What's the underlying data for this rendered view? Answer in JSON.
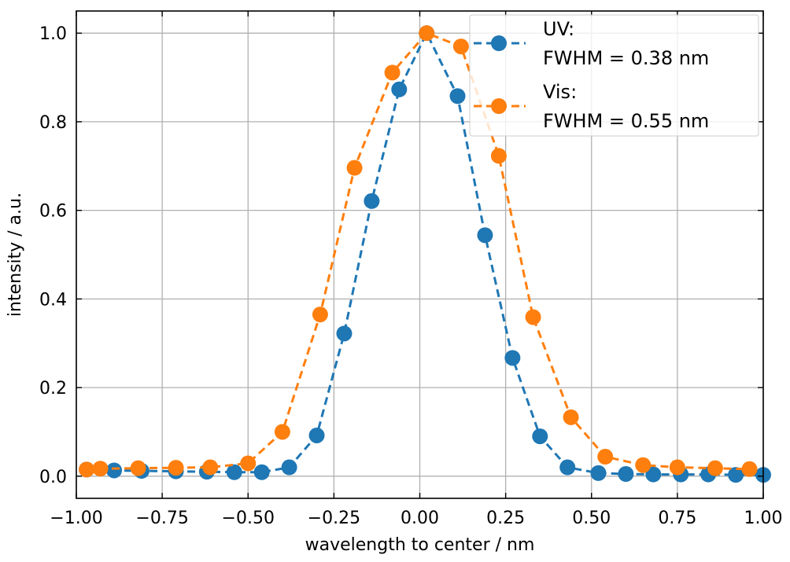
{
  "chart_data": {
    "type": "line",
    "xlabel": "wavelength to center / nm",
    "ylabel": "intensity / a.u.",
    "xlim": [
      -1.0,
      1.0
    ],
    "ylim": [
      -0.05,
      1.05
    ],
    "xticks": [
      "−1.00",
      "−0.75",
      "−0.50",
      "−0.25",
      "0.00",
      "0.25",
      "0.50",
      "0.75",
      "1.00"
    ],
    "yticks": [
      "0.0",
      "0.2",
      "0.4",
      "0.6",
      "0.8",
      "1.0"
    ],
    "grid": true,
    "legend_position": "top-right",
    "series": [
      {
        "label_line1": "UV:",
        "label_line2": "FWHM = 0.38 nm",
        "color": "#1f77b4",
        "x": [
          -0.97,
          -0.89,
          -0.81,
          -0.71,
          -0.62,
          -0.54,
          -0.46,
          -0.38,
          -0.3,
          -0.22,
          -0.14,
          -0.06,
          0.02,
          0.11,
          0.19,
          0.27,
          0.35,
          0.43,
          0.52,
          0.6,
          0.68,
          0.76,
          0.84,
          0.92,
          1.0
        ],
        "y": [
          0.015,
          0.013,
          0.012,
          0.011,
          0.01,
          0.009,
          0.009,
          0.02,
          0.092,
          0.322,
          0.621,
          0.873,
          1.0,
          0.858,
          0.544,
          0.267,
          0.09,
          0.02,
          0.007,
          0.005,
          0.004,
          0.004,
          0.004,
          0.003,
          0.003
        ]
      },
      {
        "label_line1": "Vis:",
        "label_line2": "FWHM = 0.55 nm",
        "color": "#ff7f0e",
        "x": [
          -0.97,
          -0.93,
          -0.82,
          -0.71,
          -0.61,
          -0.5,
          -0.4,
          -0.29,
          -0.19,
          -0.08,
          0.02,
          0.12,
          0.23,
          0.33,
          0.44,
          0.54,
          0.65,
          0.75,
          0.86,
          0.96
        ],
        "y": [
          0.015,
          0.017,
          0.018,
          0.019,
          0.02,
          0.029,
          0.1,
          0.365,
          0.696,
          0.911,
          1.0,
          0.97,
          0.723,
          0.359,
          0.133,
          0.044,
          0.025,
          0.02,
          0.018,
          0.016
        ]
      }
    ]
  }
}
